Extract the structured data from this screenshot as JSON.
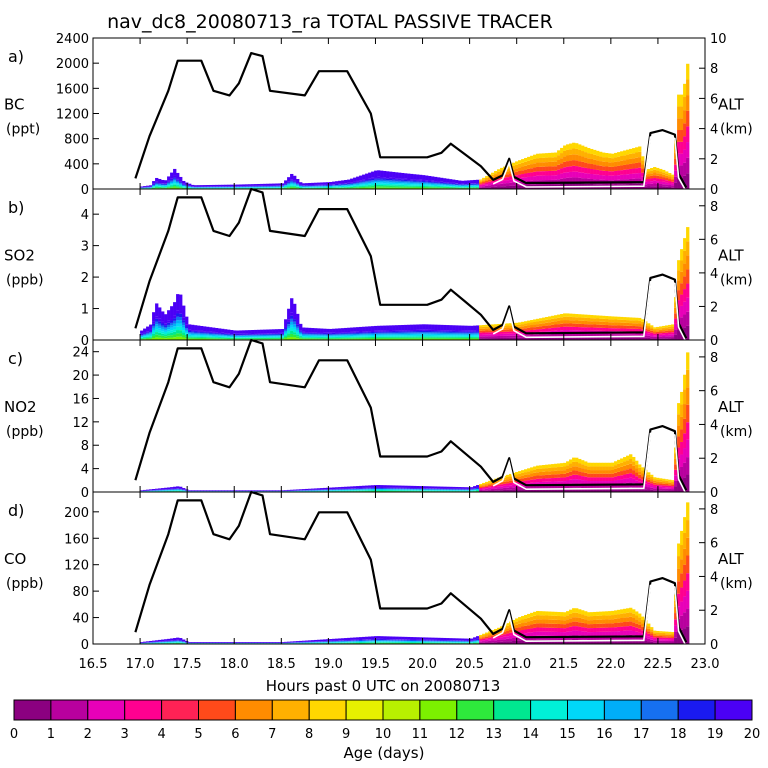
{
  "title": "nav_dc8_20080713_ra TOTAL PASSIVE TRACER",
  "xlabel": "Hours past 0 UTC on 20080713",
  "x_ticks": [
    "16.5",
    "17.0",
    "17.5",
    "18.0",
    "18.5",
    "19.0",
    "19.5",
    "20.0",
    "20.5",
    "21.0",
    "21.5",
    "22.0",
    "22.5",
    "23.0"
  ],
  "colorbar": {
    "label": "Age (days)",
    "ticks": [
      "0",
      "1",
      "2",
      "3",
      "4",
      "5",
      "6",
      "7",
      "8",
      "9",
      "10",
      "11",
      "12",
      "13",
      "14",
      "15",
      "16",
      "17",
      "18",
      "19",
      "20"
    ],
    "colors": [
      "#8B0080",
      "#B8009E",
      "#E800B8",
      "#FF0090",
      "#FF2255",
      "#FF4A1A",
      "#FF8C00",
      "#FFB000",
      "#FFD700",
      "#E6F000",
      "#B8F000",
      "#7CF000",
      "#2EEA3C",
      "#00E890",
      "#00F0D8",
      "#00D8F8",
      "#00AEF8",
      "#1670F0",
      "#1A1AF0",
      "#4B00F5"
    ]
  },
  "chart_data": [
    {
      "type": "area",
      "panel": "a)",
      "ylabel": "BC",
      "yunit": "(ppt)",
      "y_ticks": [
        "0",
        "400",
        "800",
        "1200",
        "1600",
        "2000",
        "2400"
      ],
      "ylim": [
        0,
        2400
      ],
      "y2label": "ALT",
      "y2unit": "(km)",
      "y2_ticks": [
        "0",
        "2",
        "4",
        "6",
        "8",
        "10"
      ],
      "y2lim": [
        0,
        10
      ],
      "xlim": [
        16.5,
        23.0
      ],
      "tracer_top": [
        [
          17.0,
          40
        ],
        [
          17.1,
          60
        ],
        [
          17.15,
          180
        ],
        [
          17.25,
          130
        ],
        [
          17.35,
          320
        ],
        [
          17.45,
          120
        ],
        [
          17.55,
          60
        ],
        [
          18.0,
          70
        ],
        [
          18.5,
          90
        ],
        [
          18.6,
          250
        ],
        [
          18.7,
          90
        ],
        [
          19.0,
          110
        ],
        [
          19.2,
          150
        ],
        [
          19.5,
          300
        ],
        [
          19.8,
          250
        ],
        [
          20.0,
          220
        ],
        [
          20.4,
          130
        ],
        [
          20.6,
          150
        ],
        [
          20.8,
          320
        ],
        [
          21.0,
          450
        ],
        [
          21.2,
          560
        ],
        [
          21.4,
          580
        ],
        [
          21.5,
          700
        ],
        [
          21.6,
          740
        ],
        [
          21.75,
          650
        ],
        [
          21.9,
          580
        ],
        [
          22.0,
          560
        ],
        [
          22.1,
          600
        ],
        [
          22.2,
          640
        ],
        [
          22.3,
          680
        ],
        [
          22.35,
          300
        ],
        [
          22.45,
          350
        ],
        [
          22.55,
          300
        ],
        [
          22.65,
          220
        ],
        [
          22.7,
          1500
        ],
        [
          22.75,
          1500
        ],
        [
          22.8,
          2000
        ]
      ],
      "alt_km": [
        [
          16.95,
          0.7
        ],
        [
          17.1,
          3.5
        ],
        [
          17.3,
          6.5
        ],
        [
          17.4,
          8.5
        ],
        [
          17.65,
          8.5
        ],
        [
          17.78,
          6.5
        ],
        [
          17.95,
          6.2
        ],
        [
          18.05,
          7.0
        ],
        [
          18.18,
          9.0
        ],
        [
          18.3,
          8.8
        ],
        [
          18.38,
          6.5
        ],
        [
          18.75,
          6.2
        ],
        [
          18.9,
          7.8
        ],
        [
          19.2,
          7.8
        ],
        [
          19.45,
          5.0
        ],
        [
          19.55,
          2.1
        ],
        [
          20.05,
          2.1
        ],
        [
          20.2,
          2.4
        ],
        [
          20.3,
          3.0
        ],
        [
          20.45,
          2.3
        ],
        [
          20.62,
          1.5
        ],
        [
          20.75,
          0.6
        ],
        [
          20.85,
          0.9
        ],
        [
          20.92,
          2.0
        ],
        [
          20.97,
          0.8
        ],
        [
          21.1,
          0.4
        ],
        [
          22.35,
          0.45
        ],
        [
          22.42,
          3.7
        ],
        [
          22.55,
          3.9
        ],
        [
          22.68,
          3.6
        ],
        [
          22.72,
          1.0
        ],
        [
          22.8,
          0.1
        ]
      ]
    },
    {
      "type": "area",
      "panel": "b)",
      "ylabel": "SO2",
      "yunit": "(ppb)",
      "y_ticks": [
        "0",
        "1",
        "2",
        "3",
        "4"
      ],
      "ylim": [
        0,
        4.8
      ],
      "y2label": "ALT",
      "y2unit": "(km)",
      "y2_ticks": [
        "0",
        "2",
        "4",
        "6",
        "8"
      ],
      "y2lim": [
        0,
        9
      ],
      "xlim": [
        16.5,
        23.0
      ],
      "tracer_top": [
        [
          17.0,
          0.3
        ],
        [
          17.1,
          0.5
        ],
        [
          17.15,
          1.2
        ],
        [
          17.25,
          0.8
        ],
        [
          17.35,
          1.2
        ],
        [
          17.4,
          1.6
        ],
        [
          17.5,
          0.5
        ],
        [
          18.0,
          0.3
        ],
        [
          18.5,
          0.35
        ],
        [
          18.6,
          1.4
        ],
        [
          18.7,
          0.4
        ],
        [
          19.0,
          0.35
        ],
        [
          19.5,
          0.45
        ],
        [
          20.0,
          0.5
        ],
        [
          20.5,
          0.45
        ],
        [
          21.0,
          0.55
        ],
        [
          21.5,
          0.85
        ],
        [
          22.0,
          0.75
        ],
        [
          22.3,
          0.7
        ],
        [
          22.45,
          0.4
        ],
        [
          22.65,
          0.5
        ],
        [
          22.7,
          2.5
        ],
        [
          22.8,
          3.6
        ]
      ],
      "alt_km": [
        [
          16.95,
          0.7
        ],
        [
          17.1,
          3.5
        ],
        [
          17.3,
          6.5
        ],
        [
          17.4,
          8.5
        ],
        [
          17.65,
          8.5
        ],
        [
          17.78,
          6.5
        ],
        [
          17.95,
          6.2
        ],
        [
          18.05,
          7.0
        ],
        [
          18.18,
          9.0
        ],
        [
          18.3,
          8.8
        ],
        [
          18.38,
          6.5
        ],
        [
          18.75,
          6.2
        ],
        [
          18.9,
          7.8
        ],
        [
          19.2,
          7.8
        ],
        [
          19.45,
          5.0
        ],
        [
          19.55,
          2.1
        ],
        [
          20.05,
          2.1
        ],
        [
          20.2,
          2.4
        ],
        [
          20.3,
          3.0
        ],
        [
          20.45,
          2.3
        ],
        [
          20.62,
          1.5
        ],
        [
          20.75,
          0.6
        ],
        [
          20.85,
          0.9
        ],
        [
          20.92,
          2.0
        ],
        [
          20.97,
          0.8
        ],
        [
          21.1,
          0.4
        ],
        [
          22.35,
          0.45
        ],
        [
          22.42,
          3.7
        ],
        [
          22.55,
          3.9
        ],
        [
          22.68,
          3.6
        ],
        [
          22.72,
          1.0
        ],
        [
          22.8,
          0.1
        ]
      ]
    },
    {
      "type": "area",
      "panel": "c)",
      "ylabel": "NO2",
      "yunit": "(ppb)",
      "y_ticks": [
        "0",
        "4",
        "8",
        "12",
        "16",
        "20",
        "24"
      ],
      "ylim": [
        0,
        26
      ],
      "y2label": "ALT",
      "y2unit": "(km)",
      "y2_ticks": [
        "0",
        "2",
        "4",
        "6",
        "8"
      ],
      "y2lim": [
        0,
        9
      ],
      "xlim": [
        16.5,
        23.0
      ],
      "tracer_top": [
        [
          17.0,
          0.3
        ],
        [
          17.3,
          0.8
        ],
        [
          17.4,
          1.0
        ],
        [
          17.5,
          0.3
        ],
        [
          18.5,
          0.3
        ],
        [
          19.5,
          1.2
        ],
        [
          20.0,
          1.0
        ],
        [
          20.5,
          0.8
        ],
        [
          20.8,
          2.5
        ],
        [
          21.0,
          3.5
        ],
        [
          21.2,
          4.5
        ],
        [
          21.5,
          5.0
        ],
        [
          21.6,
          6.0
        ],
        [
          21.75,
          5.0
        ],
        [
          22.0,
          5.0
        ],
        [
          22.2,
          6.5
        ],
        [
          22.3,
          4.5
        ],
        [
          22.45,
          2.5
        ],
        [
          22.65,
          2.0
        ],
        [
          22.7,
          15.0
        ],
        [
          22.75,
          18.0
        ],
        [
          22.8,
          24.0
        ]
      ],
      "alt_km": [
        [
          16.95,
          0.7
        ],
        [
          17.1,
          3.5
        ],
        [
          17.3,
          6.5
        ],
        [
          17.4,
          8.5
        ],
        [
          17.65,
          8.5
        ],
        [
          17.78,
          6.5
        ],
        [
          17.95,
          6.2
        ],
        [
          18.05,
          7.0
        ],
        [
          18.18,
          9.0
        ],
        [
          18.3,
          8.8
        ],
        [
          18.38,
          6.5
        ],
        [
          18.75,
          6.2
        ],
        [
          18.9,
          7.8
        ],
        [
          19.2,
          7.8
        ],
        [
          19.45,
          5.0
        ],
        [
          19.55,
          2.1
        ],
        [
          20.05,
          2.1
        ],
        [
          20.2,
          2.4
        ],
        [
          20.3,
          3.0
        ],
        [
          20.45,
          2.3
        ],
        [
          20.62,
          1.5
        ],
        [
          20.75,
          0.6
        ],
        [
          20.85,
          0.9
        ],
        [
          20.92,
          2.0
        ],
        [
          20.97,
          0.8
        ],
        [
          21.1,
          0.4
        ],
        [
          22.35,
          0.45
        ],
        [
          22.42,
          3.7
        ],
        [
          22.55,
          3.9
        ],
        [
          22.68,
          3.6
        ],
        [
          22.72,
          1.0
        ],
        [
          22.8,
          0.1
        ]
      ]
    },
    {
      "type": "area",
      "panel": "d)",
      "ylabel": "CO",
      "yunit": "(ppb)",
      "y_ticks": [
        "0",
        "40",
        "80",
        "120",
        "160",
        "200"
      ],
      "ylim": [
        0,
        230
      ],
      "y2label": "ALT",
      "y2unit": "(km)",
      "y2_ticks": [
        "0",
        "2",
        "4",
        "6",
        "8"
      ],
      "y2lim": [
        0,
        9
      ],
      "xlim": [
        16.5,
        23.0
      ],
      "tracer_top": [
        [
          17.0,
          3
        ],
        [
          17.3,
          8
        ],
        [
          17.4,
          10
        ],
        [
          17.5,
          3
        ],
        [
          18.5,
          3
        ],
        [
          19.5,
          12
        ],
        [
          20.0,
          10
        ],
        [
          20.5,
          8
        ],
        [
          20.8,
          25
        ],
        [
          21.0,
          40
        ],
        [
          21.2,
          50
        ],
        [
          21.5,
          48
        ],
        [
          21.6,
          55
        ],
        [
          21.75,
          48
        ],
        [
          22.0,
          50
        ],
        [
          22.2,
          55
        ],
        [
          22.3,
          45
        ],
        [
          22.45,
          20
        ],
        [
          22.65,
          18
        ],
        [
          22.7,
          150
        ],
        [
          22.75,
          180
        ],
        [
          22.8,
          215
        ]
      ],
      "alt_km": [
        [
          16.95,
          0.7
        ],
        [
          17.1,
          3.5
        ],
        [
          17.3,
          6.5
        ],
        [
          17.4,
          8.5
        ],
        [
          17.65,
          8.5
        ],
        [
          17.78,
          6.5
        ],
        [
          17.95,
          6.2
        ],
        [
          18.05,
          7.0
        ],
        [
          18.18,
          9.0
        ],
        [
          18.3,
          8.8
        ],
        [
          18.38,
          6.5
        ],
        [
          18.75,
          6.2
        ],
        [
          18.9,
          7.8
        ],
        [
          19.2,
          7.8
        ],
        [
          19.45,
          5.0
        ],
        [
          19.55,
          2.1
        ],
        [
          20.05,
          2.1
        ],
        [
          20.2,
          2.4
        ],
        [
          20.3,
          3.0
        ],
        [
          20.45,
          2.3
        ],
        [
          20.62,
          1.5
        ],
        [
          20.75,
          0.6
        ],
        [
          20.85,
          0.9
        ],
        [
          20.92,
          2.0
        ],
        [
          20.97,
          0.8
        ],
        [
          21.1,
          0.4
        ],
        [
          22.35,
          0.45
        ],
        [
          22.42,
          3.7
        ],
        [
          22.55,
          3.9
        ],
        [
          22.68,
          3.6
        ],
        [
          22.72,
          1.0
        ],
        [
          22.8,
          0.1
        ]
      ]
    }
  ]
}
